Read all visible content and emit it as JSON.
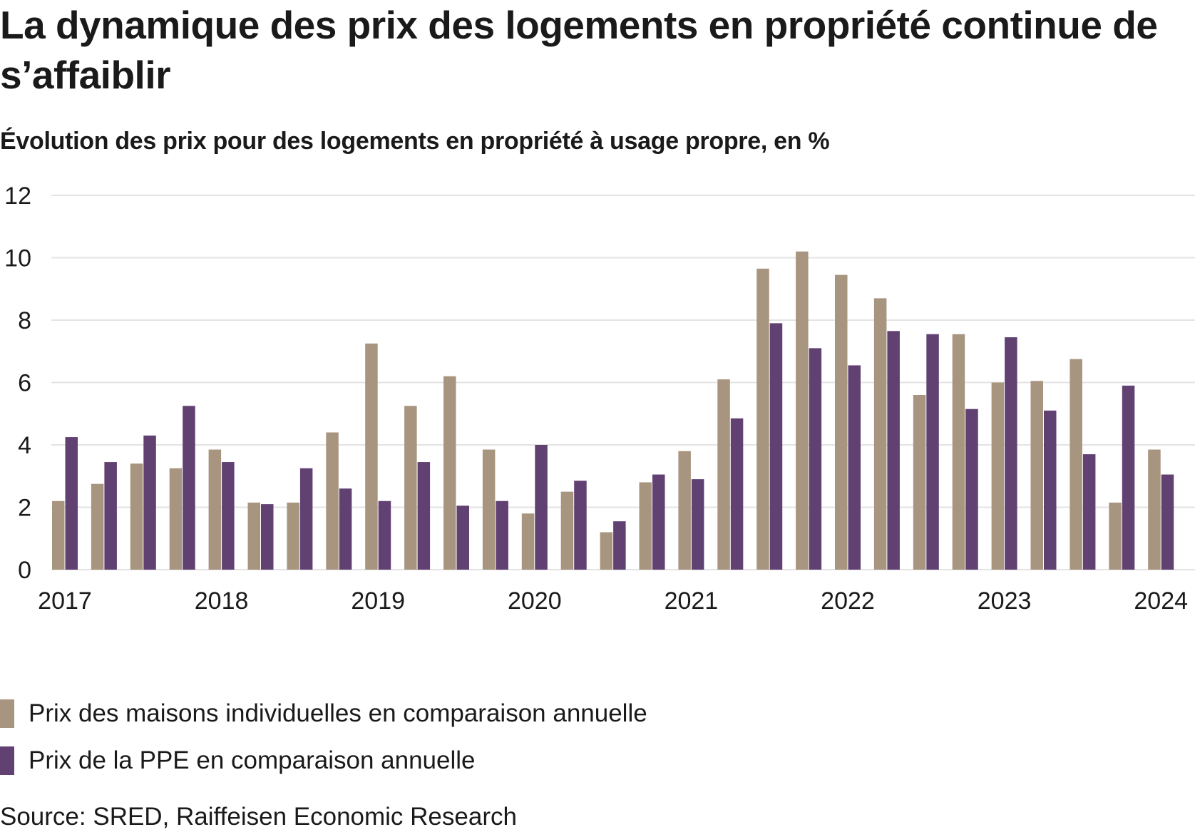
{
  "chart_data": {
    "type": "bar",
    "title": "La dynamique des prix des logements en propriété continue de s’affaiblir",
    "subtitle": "Évolution des prix pour des logements en propriété à usage propre, en %",
    "xlabel": "",
    "ylabel": "",
    "ylim": [
      0,
      12
    ],
    "yticks": [
      0,
      2,
      4,
      6,
      8,
      10,
      12
    ],
    "grid": true,
    "legend_position": "bottom-left",
    "categories": [
      "2017 T1",
      "2017 T2",
      "2017 T3",
      "2017 T4",
      "2018 T1",
      "2018 T2",
      "2018 T3",
      "2018 T4",
      "2019 T1",
      "2019 T2",
      "2019 T3",
      "2019 T4",
      "2020 T1",
      "2020 T2",
      "2020 T3",
      "2020 T4",
      "2021 T1",
      "2021 T2",
      "2021 T3",
      "2021 T4",
      "2022 T1",
      "2022 T2",
      "2022 T3",
      "2022 T4",
      "2023 T1",
      "2023 T2",
      "2023 T3",
      "2023 T4",
      "2024 T1"
    ],
    "xtick_labels": [
      {
        "label": "2017",
        "index": 0
      },
      {
        "label": "2018",
        "index": 4
      },
      {
        "label": "2019",
        "index": 8
      },
      {
        "label": "2020",
        "index": 12
      },
      {
        "label": "2021",
        "index": 16
      },
      {
        "label": "2022",
        "index": 20
      },
      {
        "label": "2023",
        "index": 24
      },
      {
        "label": "2024",
        "index": 28
      }
    ],
    "series": [
      {
        "name": "Prix des maisons individuelles en comparaison annuelle",
        "color": "#a8957f",
        "values": [
          2.2,
          2.75,
          3.4,
          3.25,
          3.85,
          2.15,
          2.15,
          4.4,
          7.25,
          5.25,
          6.2,
          3.85,
          1.8,
          2.5,
          1.2,
          2.8,
          3.8,
          6.1,
          9.65,
          10.2,
          9.45,
          8.7,
          5.6,
          7.55,
          6.0,
          6.05,
          6.75,
          2.15,
          3.85
        ]
      },
      {
        "name": "Prix de la PPE en comparaison annuelle",
        "color": "#614072",
        "values": [
          4.25,
          3.45,
          4.3,
          5.25,
          3.45,
          2.1,
          3.25,
          2.6,
          2.2,
          3.45,
          2.05,
          2.2,
          4.0,
          2.85,
          1.55,
          3.05,
          2.9,
          4.85,
          7.9,
          7.1,
          6.55,
          7.65,
          7.55,
          5.15,
          7.45,
          5.1,
          3.7,
          5.9,
          3.05
        ]
      }
    ],
    "source": "Source: SRED, Raiffeisen Economic Research"
  },
  "colors": {
    "gridline": "#e3e3e3",
    "text": "#1a1a1a"
  }
}
